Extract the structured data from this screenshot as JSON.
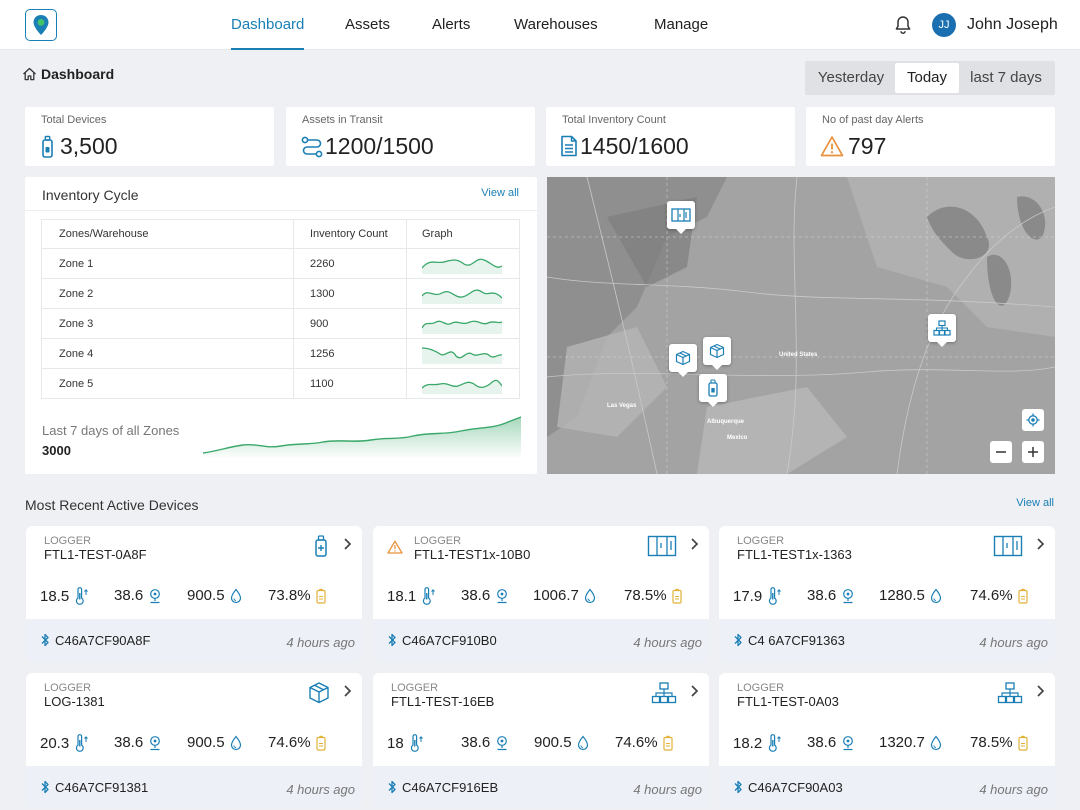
{
  "nav": {
    "items": [
      "Dashboard",
      "Assets",
      "Alerts",
      "Warehouses",
      "Manage"
    ],
    "active": "Dashboard",
    "user": {
      "initials": "JJ",
      "name": "John Joseph"
    }
  },
  "breadcrumb": "Dashboard",
  "range": {
    "options": [
      "Yesterday",
      "Today",
      "last 7 days"
    ],
    "selected": "Today"
  },
  "stats": [
    {
      "label": "Total Devices",
      "value": "3,500",
      "icon": "device-icon"
    },
    {
      "label": "Assets in Transit",
      "value": "1200/1500",
      "icon": "route-icon"
    },
    {
      "label": "Total Inventory Count",
      "value": "1450/1600",
      "icon": "document-icon"
    },
    {
      "label": "No of past day Alerts",
      "value": "797",
      "icon": "warning-icon"
    }
  ],
  "inventory": {
    "title": "Inventory Cycle",
    "view_all": "View all",
    "columns": [
      "Zones/Warehouse",
      "Inventory Count",
      "Graph"
    ],
    "rows": [
      {
        "zone": "Zone 1",
        "count": "2260"
      },
      {
        "zone": "Zone 2",
        "count": "1300"
      },
      {
        "zone": "Zone 3",
        "count": "900"
      },
      {
        "zone": "Zone 4",
        "count": "1256"
      },
      {
        "zone": "Zone 5",
        "count": "1100"
      }
    ],
    "summary_label": "Last 7 days of all Zones",
    "summary_value": "3000",
    "chart_color": "#3aa86a"
  },
  "map": {
    "labels": [
      "United States",
      "Las Vegas",
      "Albuquerque",
      "Mexico"
    ],
    "pins": [
      "warehouse-icon",
      "box-icon",
      "box-icon",
      "device-icon",
      "network-icon"
    ],
    "controls": [
      "locate-icon",
      "zoom-out-icon",
      "zoom-in-icon"
    ]
  },
  "devices": {
    "title": "Most Recent Active Devices",
    "view_all": "View all",
    "cards": [
      {
        "type": "LOGGER",
        "name": "FTL1-TEST-0A8F",
        "icon": "device-icon",
        "alert": false,
        "temp": "18.5",
        "location": "38.6",
        "pressure": "900.5",
        "battery": "73.8%",
        "mac": "C46A7CF90A8F",
        "time": "4 hours ago"
      },
      {
        "type": "LOGGER",
        "name": "FTL1-TEST1x-10B0",
        "icon": "warehouse-icon",
        "alert": true,
        "temp": "18.1",
        "location": "38.6",
        "pressure": "1006.7",
        "battery": "78.5%",
        "mac": "C46A7CF910B0",
        "time": "4 hours ago"
      },
      {
        "type": "LOGGER",
        "name": "FTL1-TEST1x-1363",
        "icon": "warehouse-icon",
        "alert": false,
        "temp": "17.9",
        "location": "38.6",
        "pressure": "1280.5",
        "battery": "74.6%",
        "mac": "C4 6A7CF91363",
        "time": "4 hours ago"
      },
      {
        "type": "LOGGER",
        "name": "LOG-1381",
        "icon": "box-icon",
        "alert": false,
        "temp": "20.3",
        "location": "38.6",
        "pressure": "900.5",
        "battery": "74.6%",
        "mac": "C46A7CF91381",
        "time": "4 hours ago"
      },
      {
        "type": "LOGGER",
        "name": "FTL1-TEST-16EB",
        "icon": "network-icon",
        "alert": false,
        "temp": "18",
        "location": "38.6",
        "pressure": "900.5",
        "battery": "74.6%",
        "mac": "C46A7CF916EB",
        "time": "4 hours ago"
      },
      {
        "type": "LOGGER",
        "name": "FTL1-TEST-0A03",
        "icon": "network-icon",
        "alert": false,
        "temp": "18.2",
        "location": "38.6",
        "pressure": "1320.7",
        "battery": "78.5%",
        "mac": "C46A7CF90A03",
        "time": "4 hours ago"
      }
    ]
  },
  "colors": {
    "accent": "#1a7fb5",
    "warning": "#e8913a",
    "battery": "#e2b23a",
    "avatar": "#1a6fb0"
  }
}
